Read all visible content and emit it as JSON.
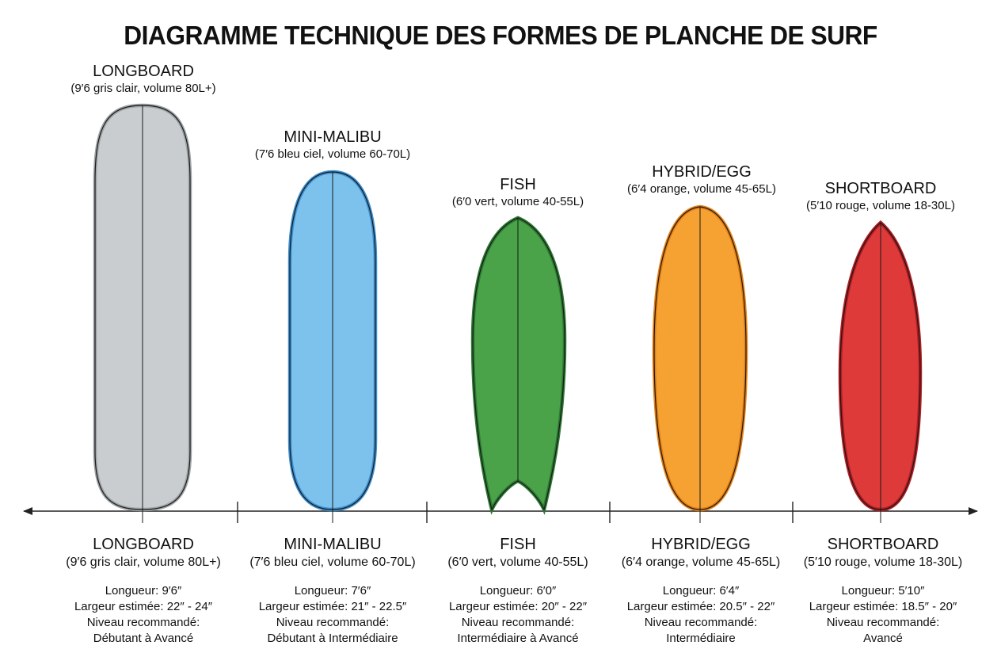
{
  "title": "DIAGRAMME TECHNIQUE DES FORMES DE PLANCHE DE SURF",
  "colors": {
    "axis": "#222222",
    "outline": "#1a1a1a"
  },
  "boards": [
    {
      "id": "longboard",
      "name": "LONGBOARD",
      "spec": "(9′6 gris clair, volume 80L+)",
      "length": "Longueur: 9′6″",
      "width": "Largeur estimée: 22″ - 24″",
      "level_label": "Niveau recommandé:",
      "level": "Débutant à Avancé",
      "fill": "#c9cdd0",
      "edge": "#9ea3a6",
      "shape": "longboard"
    },
    {
      "id": "mini-malibu",
      "name": "MINI-MALIBU",
      "spec": "(7′6 bleu ciel, volume 60-70L)",
      "length": "Longueur: 7′6″",
      "width": "Largeur estimée: 21″ - 22.5″",
      "level_label": "Niveau recommandé:",
      "level": "Débutant à Intermédiaire",
      "fill": "#7cc2ec",
      "edge": "#3c8fd0",
      "shape": "round"
    },
    {
      "id": "fish",
      "name": "FISH",
      "spec": "(6′0 vert, volume 40-55L)",
      "length": "Longueur: 6′0″",
      "width": "Largeur estimée: 20″ - 22″",
      "level_label": "Niveau recommandé:",
      "level": "Intermédiaire à Avancé",
      "fill": "#4aa349",
      "edge": "#2c7a32",
      "shape": "fish"
    },
    {
      "id": "hybrid-egg",
      "name": "HYBRID/EGG",
      "spec": "(6′4 orange, volume 45-65L)",
      "length": "Longueur: 6′4″",
      "width": "Largeur estimée: 20.5″ - 22″",
      "level_label": "Niveau recommandé:",
      "level": "Intermédiaire",
      "fill": "#f6a233",
      "edge": "#e57f12",
      "shape": "egg"
    },
    {
      "id": "shortboard",
      "name": "SHORTBOARD",
      "spec": "(5′10 rouge, volume 18-30L)",
      "length": "Longueur: 5′10″",
      "width": "Largeur estimée: 18.5″ - 20″",
      "level_label": "Niveau recommandé:",
      "level": "Avancé",
      "fill": "#df3a3a",
      "edge": "#b41d22",
      "shape": "pointed"
    }
  ]
}
